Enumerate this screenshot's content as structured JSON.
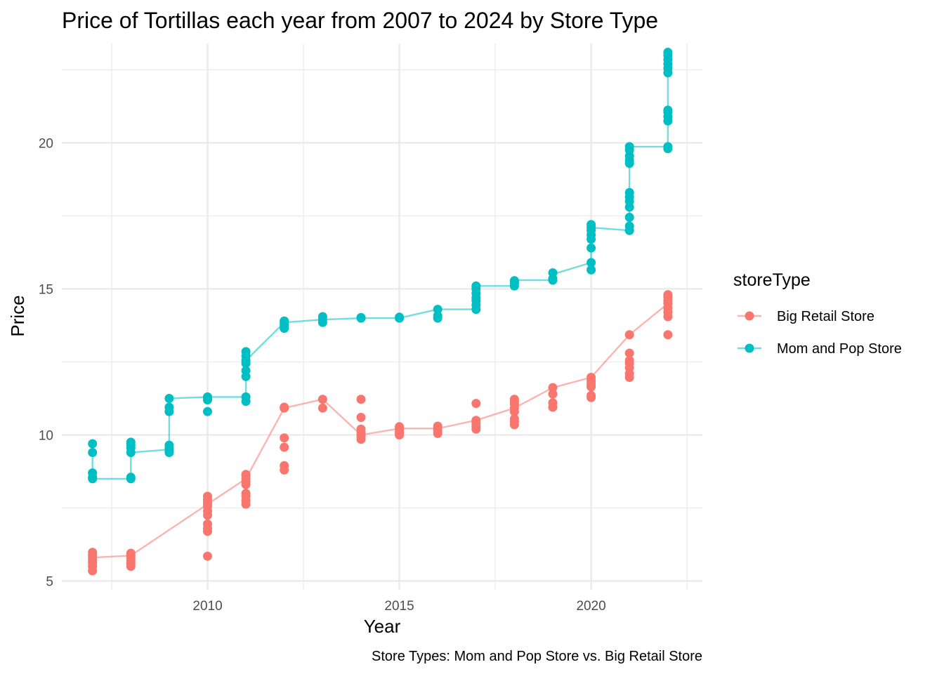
{
  "chart_data": {
    "type": "line",
    "title": "Price of Tortillas each year from 2007 to 2024 by Store Type",
    "xlabel": "Year",
    "ylabel": "Price",
    "caption": "Store Types: Mom and Pop Store vs. Big Retail Store",
    "xlim": [
      2006.2,
      2022.9
    ],
    "ylim": [
      4.7,
      23.4
    ],
    "x_ticks": [
      2010,
      2015,
      2020
    ],
    "y_ticks": [
      5,
      10,
      15,
      20
    ],
    "grid": true,
    "legend": {
      "title": "storeType",
      "position": "right"
    },
    "series": [
      {
        "name": "Big Retail Store",
        "color": "#F8766D",
        "line": {
          "x": [
            2007,
            2008,
            2010,
            2011,
            2012,
            2013,
            2014,
            2015,
            2016,
            2017,
            2018,
            2019,
            2020,
            2021,
            2022
          ],
          "y": [
            5.8,
            5.87,
            7.63,
            8.5,
            10.92,
            11.22,
            10.0,
            10.22,
            10.22,
            10.5,
            10.92,
            11.62,
            11.97,
            13.43,
            14.5
          ]
        },
        "points": [
          [
            2007,
            5.35
          ],
          [
            2007,
            5.5
          ],
          [
            2007,
            5.62
          ],
          [
            2007,
            5.72
          ],
          [
            2007,
            5.8
          ],
          [
            2007,
            5.9
          ],
          [
            2007,
            5.98
          ],
          [
            2008,
            5.5
          ],
          [
            2008,
            5.6
          ],
          [
            2008,
            5.7
          ],
          [
            2008,
            5.8
          ],
          [
            2008,
            5.87
          ],
          [
            2008,
            5.95
          ],
          [
            2010,
            5.85
          ],
          [
            2010,
            6.7
          ],
          [
            2010,
            6.8
          ],
          [
            2010,
            6.95
          ],
          [
            2010,
            7.25
          ],
          [
            2010,
            7.4
          ],
          [
            2010,
            7.55
          ],
          [
            2010,
            7.63
          ],
          [
            2010,
            7.7
          ],
          [
            2010,
            7.8
          ],
          [
            2010,
            7.9
          ],
          [
            2011,
            7.63
          ],
          [
            2011,
            7.75
          ],
          [
            2011,
            7.9
          ],
          [
            2011,
            8.0
          ],
          [
            2011,
            8.3
          ],
          [
            2011,
            8.4
          ],
          [
            2011,
            8.5
          ],
          [
            2011,
            8.6
          ],
          [
            2011,
            8.65
          ],
          [
            2012,
            8.8
          ],
          [
            2012,
            8.95
          ],
          [
            2012,
            9.58
          ],
          [
            2012,
            9.9
          ],
          [
            2012,
            10.92
          ],
          [
            2012,
            10.95
          ],
          [
            2013,
            10.92
          ],
          [
            2013,
            11.22
          ],
          [
            2014,
            9.85
          ],
          [
            2014,
            9.95
          ],
          [
            2014,
            10.0
          ],
          [
            2014,
            10.1
          ],
          [
            2014,
            10.2
          ],
          [
            2014,
            10.6
          ],
          [
            2014,
            11.22
          ],
          [
            2015,
            10.0
          ],
          [
            2015,
            10.05
          ],
          [
            2015,
            10.1
          ],
          [
            2015,
            10.2
          ],
          [
            2015,
            10.28
          ],
          [
            2016,
            10.05
          ],
          [
            2016,
            10.15
          ],
          [
            2016,
            10.22
          ],
          [
            2016,
            10.3
          ],
          [
            2017,
            10.2
          ],
          [
            2017,
            10.3
          ],
          [
            2017,
            10.4
          ],
          [
            2017,
            10.5
          ],
          [
            2017,
            11.08
          ],
          [
            2018,
            10.35
          ],
          [
            2018,
            10.45
          ],
          [
            2018,
            10.55
          ],
          [
            2018,
            10.8
          ],
          [
            2018,
            10.92
          ],
          [
            2018,
            11.05
          ],
          [
            2018,
            11.15
          ],
          [
            2018,
            11.22
          ],
          [
            2019,
            10.95
          ],
          [
            2019,
            11.1
          ],
          [
            2019,
            11.4
          ],
          [
            2019,
            11.62
          ],
          [
            2020,
            11.28
          ],
          [
            2020,
            11.35
          ],
          [
            2020,
            11.65
          ],
          [
            2020,
            11.75
          ],
          [
            2020,
            11.85
          ],
          [
            2020,
            11.97
          ],
          [
            2021,
            11.97
          ],
          [
            2021,
            12.1
          ],
          [
            2021,
            12.3
          ],
          [
            2021,
            12.45
          ],
          [
            2021,
            12.55
          ],
          [
            2021,
            12.8
          ],
          [
            2021,
            13.43
          ],
          [
            2022,
            13.43
          ],
          [
            2022,
            14.05
          ],
          [
            2022,
            14.2
          ],
          [
            2022,
            14.35
          ],
          [
            2022,
            14.5
          ],
          [
            2022,
            14.6
          ],
          [
            2022,
            14.72
          ],
          [
            2022,
            14.8
          ]
        ]
      },
      {
        "name": "Mom and Pop Store",
        "color": "#00BFC4",
        "line": {
          "x": [
            2007,
            2008,
            2009,
            2010,
            2011,
            2012,
            2013,
            2014,
            2015,
            2016,
            2017,
            2018,
            2019,
            2020,
            2021,
            2022
          ],
          "y": [
            8.5,
            9.4,
            9.5,
            11.3,
            11.3,
            13.85,
            13.95,
            14.0,
            14.0,
            14.3,
            15.1,
            15.3,
            15.3,
            17.1,
            19.87,
            22.9
          ],
          "path": [
            [
              2007,
              8.5
            ],
            [
              2007,
              9.7
            ],
            [
              2007,
              8.5
            ],
            [
              2008,
              8.5
            ],
            [
              2008,
              9.4
            ],
            [
              2009,
              9.5
            ],
            [
              2009,
              11.25
            ],
            [
              2010,
              11.3
            ],
            [
              2011,
              11.3
            ],
            [
              2011,
              12.55
            ],
            [
              2012,
              13.85
            ],
            [
              2012,
              13.65
            ],
            [
              2012,
              13.85
            ],
            [
              2013,
              13.95
            ],
            [
              2014,
              14.0
            ],
            [
              2015,
              14.0
            ],
            [
              2016,
              14.3
            ],
            [
              2017,
              14.3
            ],
            [
              2017,
              15.1
            ],
            [
              2018,
              15.1
            ],
            [
              2018,
              15.3
            ],
            [
              2019,
              15.3
            ],
            [
              2019,
              15.5
            ],
            [
              2020,
              15.9
            ],
            [
              2020,
              17.1
            ],
            [
              2021,
              17.0
            ],
            [
              2021,
              19.87
            ],
            [
              2022,
              19.87
            ],
            [
              2022,
              23.1
            ]
          ]
        },
        "points": [
          [
            2007,
            8.5
          ],
          [
            2007,
            8.55
          ],
          [
            2007,
            8.7
          ],
          [
            2007,
            9.4
          ],
          [
            2007,
            9.7
          ],
          [
            2008,
            8.5
          ],
          [
            2008,
            8.55
          ],
          [
            2008,
            9.4
          ],
          [
            2008,
            9.55
          ],
          [
            2008,
            9.65
          ],
          [
            2008,
            9.75
          ],
          [
            2009,
            9.4
          ],
          [
            2009,
            9.45
          ],
          [
            2009,
            9.5
          ],
          [
            2009,
            9.55
          ],
          [
            2009,
            9.65
          ],
          [
            2009,
            10.8
          ],
          [
            2009,
            10.95
          ],
          [
            2009,
            11.25
          ],
          [
            2010,
            10.8
          ],
          [
            2010,
            11.2
          ],
          [
            2010,
            11.25
          ],
          [
            2010,
            11.3
          ],
          [
            2011,
            11.15
          ],
          [
            2011,
            11.3
          ],
          [
            2011,
            12.0
          ],
          [
            2011,
            12.2
          ],
          [
            2011,
            12.45
          ],
          [
            2011,
            12.55
          ],
          [
            2011,
            12.7
          ],
          [
            2011,
            12.85
          ],
          [
            2012,
            13.65
          ],
          [
            2012,
            13.72
          ],
          [
            2012,
            13.8
          ],
          [
            2012,
            13.85
          ],
          [
            2012,
            13.9
          ],
          [
            2013,
            13.85
          ],
          [
            2013,
            13.95
          ],
          [
            2013,
            14.05
          ],
          [
            2014,
            14.0
          ],
          [
            2014,
            14.02
          ],
          [
            2015,
            14.0
          ],
          [
            2015,
            14.03
          ],
          [
            2016,
            14.0
          ],
          [
            2016,
            14.08
          ],
          [
            2016,
            14.3
          ],
          [
            2017,
            14.3
          ],
          [
            2017,
            14.45
          ],
          [
            2017,
            14.6
          ],
          [
            2017,
            14.7
          ],
          [
            2017,
            14.85
          ],
          [
            2017,
            15.0
          ],
          [
            2017,
            15.1
          ],
          [
            2018,
            15.1
          ],
          [
            2018,
            15.2
          ],
          [
            2018,
            15.28
          ],
          [
            2019,
            15.3
          ],
          [
            2019,
            15.35
          ],
          [
            2019,
            15.55
          ],
          [
            2020,
            15.65
          ],
          [
            2020,
            15.9
          ],
          [
            2020,
            16.4
          ],
          [
            2020,
            16.7
          ],
          [
            2020,
            16.85
          ],
          [
            2020,
            17.0
          ],
          [
            2020,
            17.1
          ],
          [
            2020,
            17.2
          ],
          [
            2021,
            17.0
          ],
          [
            2021,
            17.15
          ],
          [
            2021,
            17.45
          ],
          [
            2021,
            17.8
          ],
          [
            2021,
            18.0
          ],
          [
            2021,
            18.15
          ],
          [
            2021,
            18.3
          ],
          [
            2021,
            19.3
          ],
          [
            2021,
            19.4
          ],
          [
            2021,
            19.55
          ],
          [
            2021,
            19.75
          ],
          [
            2021,
            19.87
          ],
          [
            2022,
            19.8
          ],
          [
            2022,
            19.87
          ],
          [
            2022,
            20.75
          ],
          [
            2022,
            20.9
          ],
          [
            2022,
            21.05
          ],
          [
            2022,
            21.12
          ],
          [
            2022,
            22.4
          ],
          [
            2022,
            22.55
          ],
          [
            2022,
            22.7
          ],
          [
            2022,
            22.85
          ],
          [
            2022,
            23.0
          ],
          [
            2022,
            23.1
          ]
        ]
      }
    ]
  }
}
